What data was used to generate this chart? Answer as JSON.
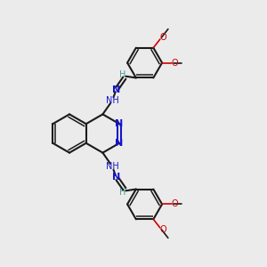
{
  "bg_color": "#ebebeb",
  "bond_color": "#1a1a1a",
  "nitrogen_color": "#1414cc",
  "oxygen_color": "#cc0000",
  "h_color": "#4a9999",
  "linewidth": 1.5,
  "double_sep": 0.07,
  "figsize": [
    3.0,
    3.0
  ],
  "dpi": 100,
  "xlim": [
    0,
    10
  ],
  "ylim": [
    0,
    10
  ],
  "r_ring": 0.72,
  "r_side": 0.65
}
